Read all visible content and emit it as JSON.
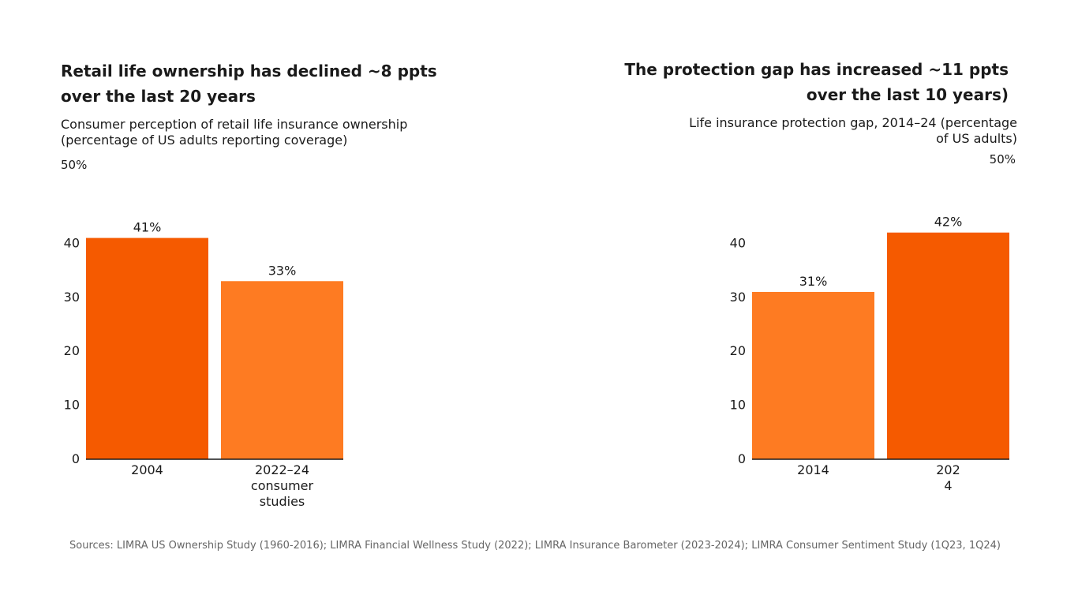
{
  "chart_data": [
    {
      "type": "bar",
      "title_lines": [
        "Retail life ownership has declined ~8 ppts",
        "over the last 20 years"
      ],
      "subtitle_lines": [
        "Consumer perception of retail life insurance ownership",
        "(percentage of US adults reporting coverage)"
      ],
      "ylim": [
        0,
        50
      ],
      "y_top_label": "50%",
      "yticks": [
        0,
        10,
        20,
        30,
        40
      ],
      "categories": [
        [
          "2004"
        ],
        [
          "2022–24",
          "consumer",
          "studies"
        ]
      ],
      "values": [
        41,
        33
      ],
      "value_labels": [
        "41%",
        "33%"
      ],
      "bar_colors": [
        "#f55a00",
        "#fe7b22"
      ]
    },
    {
      "type": "bar",
      "title_lines": [
        "The protection gap has increased ~11 ppts",
        "over the last 10 years)"
      ],
      "subtitle_lines": [
        "Life insurance protection gap, 2014–24 (percentage",
        "of US adults)"
      ],
      "ylim": [
        0,
        50
      ],
      "y_top_label": "50%",
      "yticks": [
        0,
        10,
        20,
        30,
        40
      ],
      "categories": [
        [
          "2014"
        ],
        [
          "202",
          "4"
        ]
      ],
      "values": [
        31,
        42
      ],
      "value_labels": [
        "31%",
        "42%"
      ],
      "bar_colors": [
        "#fe7b22",
        "#f55a00"
      ]
    }
  ],
  "source": "Sources: LIMRA US Ownership Study (1960-2016); LIMRA Financial Wellness Study (2022); LIMRA Insurance Barometer (2023-2024); LIMRA Consumer Sentiment Study (1Q23, 1Q24)"
}
